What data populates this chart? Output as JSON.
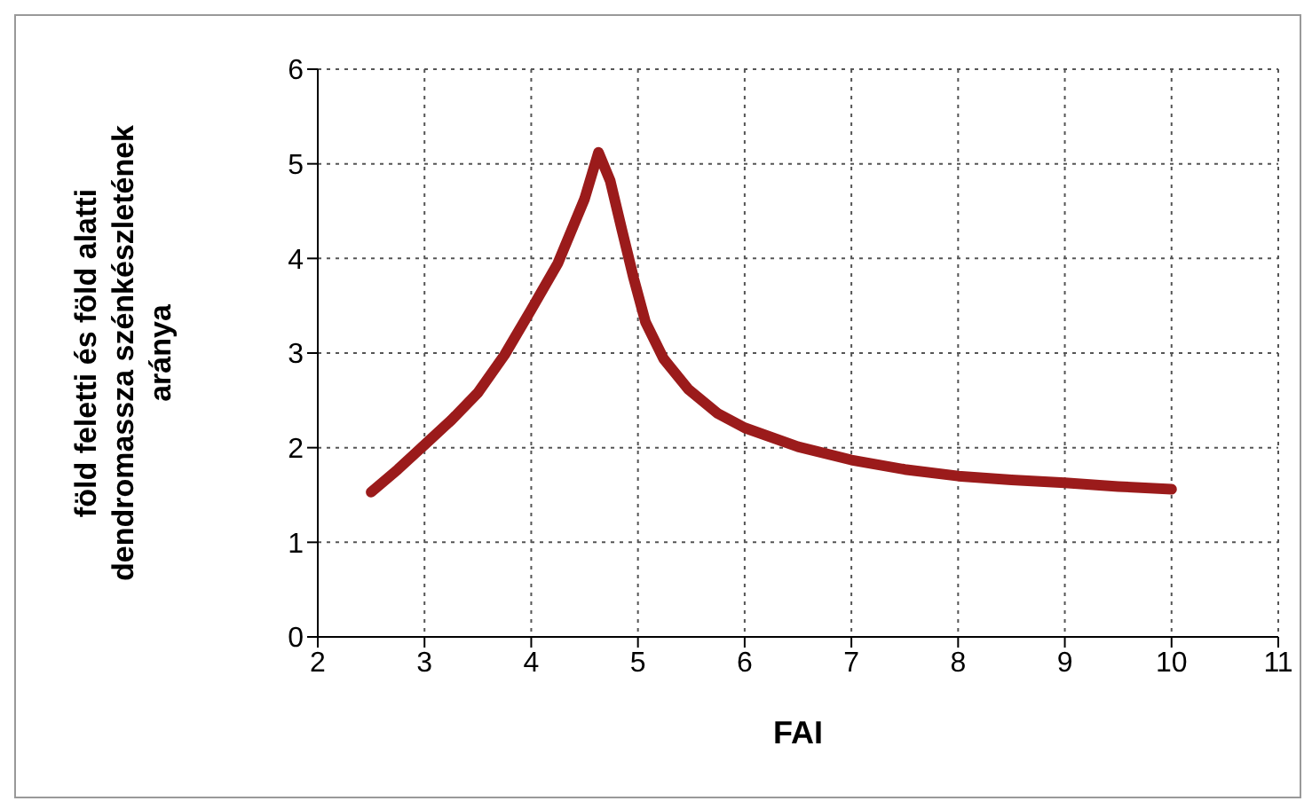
{
  "chart_data": {
    "type": "line",
    "xlabel": "FAI",
    "ylabel": "föld feletti és föld alatti dendromassza szénkészletének aránya",
    "x": [
      2.5,
      2.75,
      3,
      3.25,
      3.5,
      3.75,
      4,
      4.25,
      4.5,
      4.63,
      4.74,
      4.85,
      4.96,
      5.07,
      5.24,
      5.47,
      5.75,
      6,
      6.5,
      7,
      7.5,
      8,
      8.5,
      9,
      9.5,
      10
    ],
    "series": [
      {
        "color": "#9b1b1b",
        "values": [
          1.53,
          1.77,
          2.03,
          2.29,
          2.58,
          2.98,
          3.46,
          3.95,
          4.63,
          5.12,
          4.82,
          4.3,
          3.79,
          3.33,
          2.94,
          2.62,
          2.36,
          2.21,
          2.01,
          1.87,
          1.77,
          1.7,
          1.66,
          1.63,
          1.59,
          1.56
        ]
      }
    ],
    "xlim": [
      2,
      11
    ],
    "xticks": [
      2,
      3,
      4,
      5,
      6,
      7,
      8,
      9,
      10,
      11
    ],
    "ylim": [
      0,
      6
    ],
    "yticks": [
      0,
      1,
      2,
      3,
      4,
      5,
      6
    ],
    "grid": true,
    "legend": false,
    "marker": "none",
    "line_style": "solid"
  }
}
